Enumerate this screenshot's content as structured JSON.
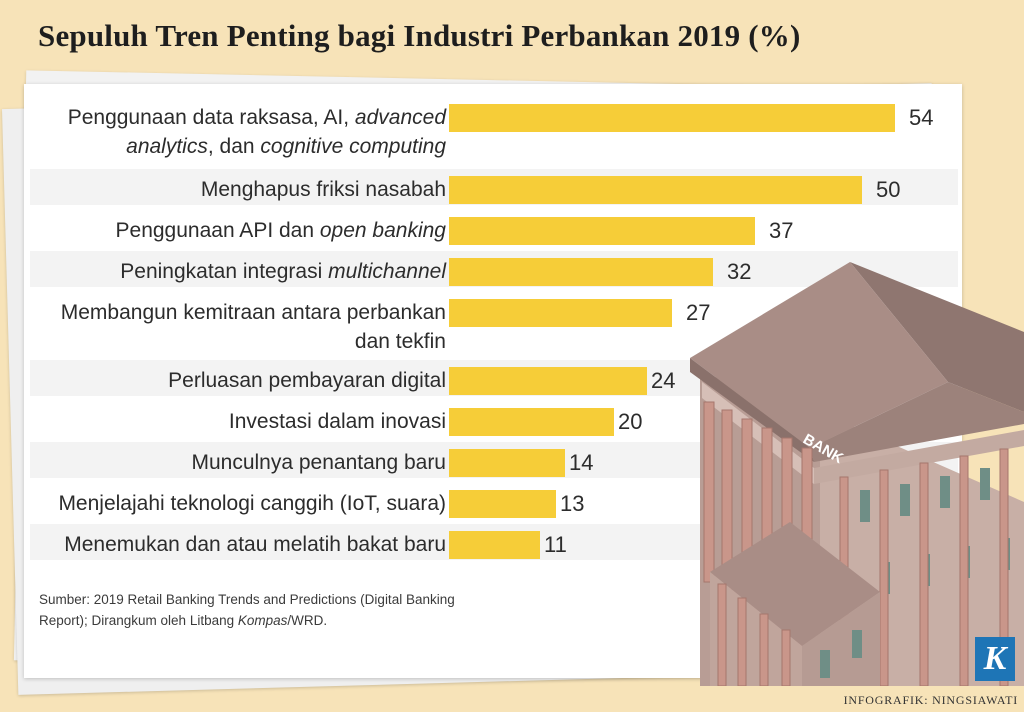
{
  "title": "Sepuluh Tren Penting bagi Industri Perbankan 2019 (%)",
  "chart_data": {
    "type": "bar",
    "orientation": "horizontal",
    "title": "Sepuluh Tren Penting bagi Industri Perbankan 2019 (%)",
    "categories": [
      {
        "lines": [
          [
            "Penggunaan data raksasa, AI, ",
            "advanced"
          ],
          [
            "analytics",
            ", dan ",
            "cognitive computing"
          ]
        ],
        "italic": [
          [
            false,
            true
          ],
          [
            true,
            false,
            true
          ]
        ],
        "text": "Penggunaan data raksasa, AI, advanced analytics, dan cognitive computing"
      },
      {
        "lines": [
          [
            "Menghapus friksi nasabah"
          ]
        ],
        "italic": [
          [
            false
          ]
        ],
        "text": "Menghapus friksi nasabah"
      },
      {
        "lines": [
          [
            "Penggunaan API dan ",
            "open banking"
          ]
        ],
        "italic": [
          [
            false,
            true
          ]
        ],
        "text": "Penggunaan API dan open banking"
      },
      {
        "lines": [
          [
            "Peningkatan integrasi ",
            "multichannel"
          ]
        ],
        "italic": [
          [
            false,
            true
          ]
        ],
        "text": "Peningkatan integrasi multichannel"
      },
      {
        "lines": [
          [
            "Membangun kemitraan antara perbankan"
          ],
          [
            "dan tekfin"
          ]
        ],
        "italic": [
          [
            false
          ],
          [
            false
          ]
        ],
        "text": "Membangun kemitraan antara perbankan dan tekfin"
      },
      {
        "lines": [
          [
            "Perluasan pembayaran digital"
          ]
        ],
        "italic": [
          [
            false
          ]
        ],
        "text": "Perluasan pembayaran digital"
      },
      {
        "lines": [
          [
            "Investasi dalam inovasi"
          ]
        ],
        "italic": [
          [
            false
          ]
        ],
        "text": "Investasi dalam inovasi"
      },
      {
        "lines": [
          [
            "Munculnya penantang baru"
          ]
        ],
        "italic": [
          [
            false
          ]
        ],
        "text": "Munculnya penantang baru"
      },
      {
        "lines": [
          [
            "Menjelajahi teknologi canggih (IoT, suara)"
          ]
        ],
        "italic": [
          [
            false
          ]
        ],
        "text": "Menjelajahi teknologi canggih (IoT, suara)"
      },
      {
        "lines": [
          [
            "Menemukan dan atau melatih bakat baru"
          ]
        ],
        "italic": [
          [
            false
          ]
        ],
        "text": "Menemukan dan atau melatih bakat baru"
      }
    ],
    "values": [
      54,
      50,
      37,
      32,
      27,
      24,
      20,
      14,
      13,
      11
    ],
    "xlim": [
      0,
      54
    ],
    "grid": false,
    "legend": "none",
    "bar_color": "#f6cd38"
  },
  "source": {
    "lines": [
      [
        {
          "t": "Sumber: 2019 Retail Banking Trends and Predictions (Digital Banking",
          "i": false
        }
      ],
      [
        {
          "t": "Report); Dirangkum oleh Litbang ",
          "i": false
        },
        {
          "t": "Kompas",
          "i": true
        },
        {
          "t": "/WRD.",
          "i": false
        }
      ]
    ]
  },
  "credit": "INFOGRAFIK: NINGSIAWATI",
  "logo_letter": "K",
  "bank_sign": "BANK",
  "colors": {
    "background": "#f7e3b8",
    "bar": "#f6cd38",
    "building": "#b79c94",
    "roof": "#a28680",
    "columns": "#c9968a"
  }
}
